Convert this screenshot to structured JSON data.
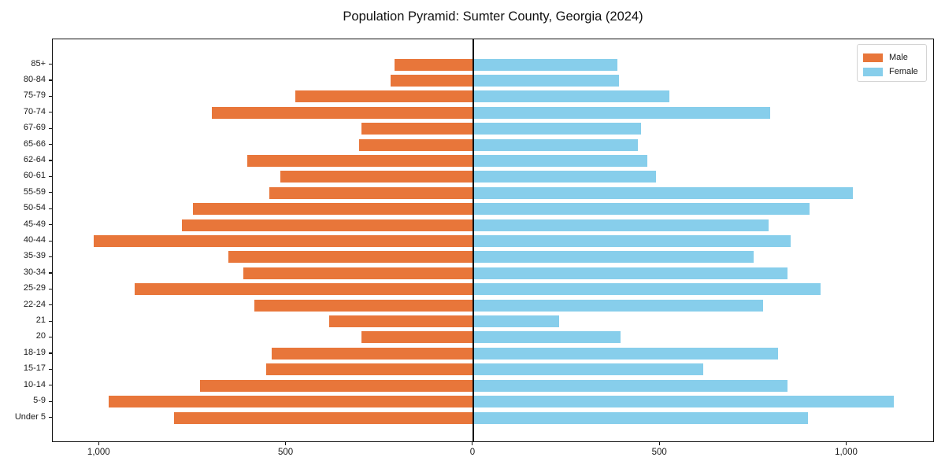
{
  "chart_data": {
    "type": "bar",
    "subtype": "population-pyramid-horizontal-diverging",
    "title": "Population Pyramid: Sumter County, Georgia (2024)",
    "categories_top_to_bottom": [
      "85+",
      "80-84",
      "75-79",
      "70-74",
      "67-69",
      "65-66",
      "62-64",
      "60-61",
      "55-59",
      "50-54",
      "45-49",
      "40-44",
      "35-39",
      "30-34",
      "25-29",
      "22-24",
      "21",
      "20",
      "18-19",
      "15-17",
      "10-14",
      "5-9",
      "Under 5"
    ],
    "series": [
      {
        "name": "Male",
        "side": "left",
        "color": "#e8763a",
        "values": [
          210,
          220,
          475,
          700,
          300,
          305,
          605,
          515,
          545,
          750,
          780,
          1015,
          655,
          615,
          905,
          585,
          385,
          300,
          540,
          555,
          730,
          975,
          800
        ]
      },
      {
        "name": "Female",
        "side": "right",
        "color": "#87ceeb",
        "values": [
          385,
          390,
          525,
          795,
          450,
          440,
          465,
          490,
          1015,
          900,
          790,
          850,
          750,
          840,
          930,
          775,
          230,
          395,
          815,
          615,
          840,
          1125,
          895
        ]
      }
    ],
    "x_ticks": [
      {
        "label": "1,000",
        "value": -1000
      },
      {
        "label": "500",
        "value": -500
      },
      {
        "label": "0",
        "value": 0
      },
      {
        "label": "500",
        "value": 500
      },
      {
        "label": "1,000",
        "value": 1000
      }
    ],
    "xlim": [
      -1125,
      1235
    ],
    "grid": false,
    "legend": {
      "position": "upper-right",
      "entries": [
        "Male",
        "Female"
      ]
    },
    "axis_color": "#111111",
    "background_color": "#ffffff"
  }
}
